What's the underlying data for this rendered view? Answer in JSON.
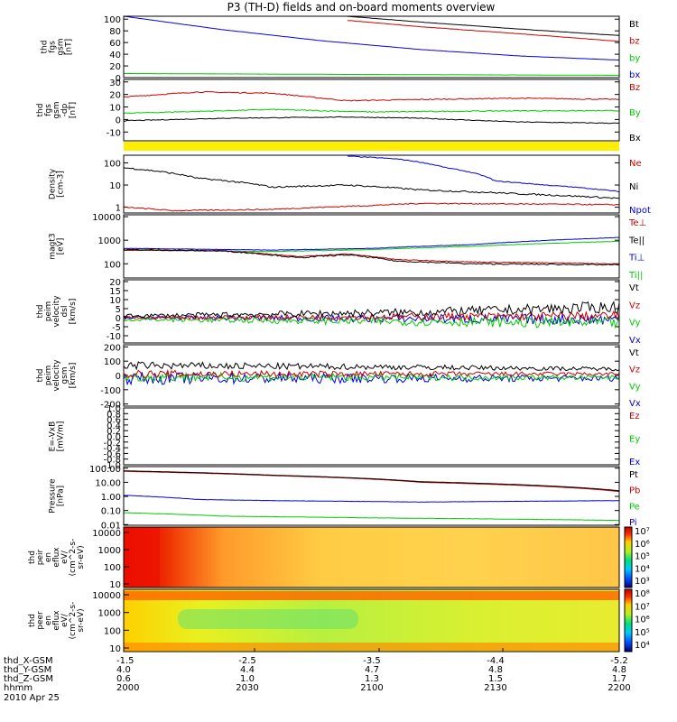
{
  "title": "P3 (TH-D) fields and on-board moments overview",
  "date_label": "2010 Apr 25",
  "colors": {
    "black": "#000000",
    "red": "#cc0000",
    "green": "#00cc00",
    "blue": "#0000dd",
    "yellow": "#ffee00",
    "axis": "#000000"
  },
  "chart_data": [
    {
      "id": "fgs_gsm",
      "type": "line",
      "ylabel": [
        "thd",
        "fgs",
        "gsm",
        "[nT]"
      ],
      "ylim": [
        0,
        105
      ],
      "ticks": [
        "0",
        "20",
        "40",
        "60",
        "80",
        "100"
      ],
      "tick_values": [
        0,
        20,
        40,
        60,
        80,
        100
      ],
      "legend": [
        {
          "label": "Bt",
          "color": "#000000"
        },
        {
          "label": "bz",
          "color": "#cc0000"
        },
        {
          "label": "by",
          "color": "#00cc00"
        },
        {
          "label": "bx",
          "color": "#0000dd"
        }
      ],
      "series": [
        {
          "color": "#000000",
          "noise": 0.2,
          "points": [
            [
              0.45,
              105
            ],
            [
              0.6,
              95
            ],
            [
              0.8,
              83
            ],
            [
              1.0,
              72
            ]
          ]
        },
        {
          "color": "#cc0000",
          "noise": 0.2,
          "points": [
            [
              0.45,
              98
            ],
            [
              0.6,
              87
            ],
            [
              0.8,
              75
            ],
            [
              1.0,
              62
            ]
          ]
        },
        {
          "color": "#00cc00",
          "noise": 0.1,
          "points": [
            [
              0,
              7
            ],
            [
              0.3,
              6
            ],
            [
              0.6,
              5
            ],
            [
              1.0,
              4
            ]
          ]
        },
        {
          "color": "#0000dd",
          "noise": 0.1,
          "points": [
            [
              0,
              105
            ],
            [
              0.2,
              82
            ],
            [
              0.4,
              63
            ],
            [
              0.6,
              48
            ],
            [
              0.8,
              37
            ],
            [
              1.0,
              30
            ]
          ]
        }
      ]
    },
    {
      "id": "fgs_gsm_dp",
      "type": "line",
      "ylabel": [
        "thd",
        "fgs",
        "gsm",
        "-dp",
        "[nT]"
      ],
      "ylim": [
        -17,
        32
      ],
      "ticks": [
        "-10",
        "0",
        "10",
        "20",
        "30"
      ],
      "tick_values": [
        -10,
        0,
        10,
        20,
        30
      ],
      "legend": [
        {
          "label": "Bz",
          "color": "#cc0000"
        },
        {
          "label": "By",
          "color": "#00cc00"
        },
        {
          "label": "Bx",
          "color": "#000000"
        }
      ],
      "series": [
        {
          "color": "#cc0000",
          "noise": 0.4,
          "points": [
            [
              0,
              18
            ],
            [
              0.15,
              22
            ],
            [
              0.3,
              21
            ],
            [
              0.45,
              15
            ],
            [
              0.6,
              16
            ],
            [
              0.8,
              17
            ],
            [
              1.0,
              16
            ]
          ]
        },
        {
          "color": "#00cc00",
          "noise": 0.4,
          "points": [
            [
              0,
              5
            ],
            [
              0.3,
              8
            ],
            [
              0.5,
              6
            ],
            [
              0.8,
              7
            ],
            [
              1.0,
              7
            ]
          ]
        },
        {
          "color": "#000000",
          "noise": 0.3,
          "points": [
            [
              0,
              -1
            ],
            [
              0.2,
              1
            ],
            [
              0.45,
              2
            ],
            [
              0.6,
              1
            ],
            [
              0.8,
              -2
            ],
            [
              1.0,
              -3
            ]
          ]
        }
      ]
    },
    {
      "id": "density",
      "type": "line",
      "log": true,
      "ylabel": [
        "Density",
        "[cm-3]"
      ],
      "ylim": [
        0.55,
        220
      ],
      "ticks": [
        "1",
        "10",
        "100"
      ],
      "tick_values": [
        1,
        10,
        100
      ],
      "legend": [
        {
          "label": "Ne",
          "color": "#cc0000"
        },
        {
          "label": "Ni",
          "color": "#000000"
        },
        {
          "label": "Npot",
          "color": "#0000dd"
        }
      ],
      "series": [
        {
          "color": "#0000dd",
          "noise": 0.02,
          "points": [
            [
              0.45,
              200
            ],
            [
              0.55,
              150
            ],
            [
              0.65,
              60
            ],
            [
              0.75,
              15
            ],
            [
              0.85,
              10
            ],
            [
              1.0,
              5
            ]
          ]
        },
        {
          "color": "#000000",
          "noise": 0.04,
          "points": [
            [
              0,
              60
            ],
            [
              0.15,
              20
            ],
            [
              0.3,
              8
            ],
            [
              0.45,
              10
            ],
            [
              0.6,
              6
            ],
            [
              0.8,
              4
            ],
            [
              1.0,
              2.5
            ]
          ]
        },
        {
          "color": "#cc0000",
          "noise": 0.03,
          "points": [
            [
              0,
              1.0
            ],
            [
              0.1,
              0.7
            ],
            [
              0.3,
              0.8
            ],
            [
              0.4,
              1.0
            ],
            [
              0.5,
              1.2
            ],
            [
              0.6,
              1.5
            ],
            [
              0.8,
              1.4
            ],
            [
              1.0,
              1.3
            ]
          ]
        }
      ]
    },
    {
      "id": "temperature",
      "type": "line",
      "log": true,
      "ylabel": [
        "magt3",
        "[eV]"
      ],
      "ylim": [
        25,
        12000
      ],
      "ticks": [
        "100",
        "1000",
        "10000"
      ],
      "tick_values": [
        100,
        1000,
        10000
      ],
      "legend": [
        {
          "label": "Te⊥",
          "color": "#cc0000"
        },
        {
          "label": "Te||",
          "color": "#000000"
        },
        {
          "label": "Ti⊥",
          "color": "#0000dd"
        },
        {
          "label": "Ti||",
          "color": "#00cc00"
        }
      ],
      "series": [
        {
          "color": "#0000dd",
          "noise": 0.01,
          "points": [
            [
              0,
              450
            ],
            [
              0.3,
              380
            ],
            [
              0.5,
              450
            ],
            [
              0.7,
              650
            ],
            [
              1.0,
              1300
            ]
          ]
        },
        {
          "color": "#00cc00",
          "noise": 0.01,
          "points": [
            [
              0,
              380
            ],
            [
              0.3,
              330
            ],
            [
              0.5,
              400
            ],
            [
              0.7,
              550
            ],
            [
              1.0,
              900
            ]
          ]
        },
        {
          "color": "#cc0000",
          "noise": 0.02,
          "points": [
            [
              0,
              380
            ],
            [
              0.2,
              360
            ],
            [
              0.35,
              200
            ],
            [
              0.45,
              260
            ],
            [
              0.55,
              150
            ],
            [
              0.7,
              120
            ],
            [
              1.0,
              100
            ]
          ]
        },
        {
          "color": "#000000",
          "noise": 0.03,
          "points": [
            [
              0,
              400
            ],
            [
              0.2,
              350
            ],
            [
              0.35,
              180
            ],
            [
              0.45,
              240
            ],
            [
              0.55,
              130
            ],
            [
              0.7,
              100
            ],
            [
              1.0,
              90
            ]
          ]
        }
      ]
    },
    {
      "id": "peim_velocity_dsl",
      "type": "line",
      "ylabel": [
        "thd",
        "peim",
        "velocity",
        "dsl",
        "[km/s]"
      ],
      "ylim": [
        -14,
        21
      ],
      "ticks": [
        "-10",
        "-5",
        "0",
        "5",
        "10",
        "15",
        "20"
      ],
      "tick_values": [
        -10,
        -5,
        0,
        5,
        10,
        15,
        20
      ],
      "legend": [
        {
          "label": "Vt",
          "color": "#000000"
        },
        {
          "label": "Vz",
          "color": "#cc0000"
        },
        {
          "label": "Vy",
          "color": "#00cc00"
        },
        {
          "label": "Vx",
          "color": "#0000dd"
        }
      ],
      "series": [
        {
          "color": "#0000dd",
          "noise": 1.5,
          "noisegrow": true,
          "points": [
            [
              0,
              0
            ],
            [
              1.0,
              -1
            ]
          ]
        },
        {
          "color": "#00cc00",
          "noise": 1.5,
          "noisegrow": true,
          "points": [
            [
              0,
              -1
            ],
            [
              1.0,
              -3
            ]
          ]
        },
        {
          "color": "#cc0000",
          "noise": 1.2,
          "noisegrow": true,
          "points": [
            [
              0,
              0
            ],
            [
              1.0,
              1
            ]
          ]
        },
        {
          "color": "#000000",
          "noise": 1.5,
          "noisegrow": true,
          "points": [
            [
              0,
              1
            ],
            [
              0.6,
              3
            ],
            [
              1.0,
              6
            ]
          ]
        }
      ]
    },
    {
      "id": "peim_velocity_gsm",
      "type": "line",
      "ylabel": [
        "thd",
        "peim",
        "velocity",
        "gsm",
        "[km/s]"
      ],
      "ylim": [
        -215,
        215
      ],
      "ticks": [
        "-200",
        "-100",
        "0",
        "100",
        "200"
      ],
      "tick_values": [
        -200,
        -100,
        0,
        100,
        200
      ],
      "legend": [
        {
          "label": "Vt",
          "color": "#000000"
        },
        {
          "label": "Vz",
          "color": "#cc0000"
        },
        {
          "label": "Vy",
          "color": "#00cc00"
        },
        {
          "label": "Vx",
          "color": "#0000dd"
        }
      ],
      "series": [
        {
          "color": "#0000dd",
          "noise": 40,
          "decay": true,
          "points": [
            [
              0,
              -20
            ],
            [
              1.0,
              -20
            ]
          ]
        },
        {
          "color": "#00cc00",
          "noise": 30,
          "decay": true,
          "points": [
            [
              0,
              -10
            ],
            [
              1.0,
              -15
            ]
          ]
        },
        {
          "color": "#cc0000",
          "noise": 25,
          "decay": true,
          "points": [
            [
              0,
              10
            ],
            [
              1.0,
              10
            ]
          ]
        },
        {
          "color": "#000000",
          "noise": 25,
          "decay": true,
          "points": [
            [
              0,
              70
            ],
            [
              0.5,
              60
            ],
            [
              1.0,
              45
            ]
          ]
        }
      ]
    },
    {
      "id": "e_minus_vxb",
      "type": "line",
      "ylabel": [
        "E=-VxB",
        "[mV/m]"
      ],
      "ylim": [
        -1.0,
        1.0
      ],
      "ticks": [
        "-1.0",
        "-0.8",
        "-0.6",
        "-0.4",
        "-0.2",
        "0.0",
        "0.2",
        "0.4",
        "0.6",
        "0.8",
        "1.0"
      ],
      "tick_values": [
        -1.0,
        -0.8,
        -0.6,
        -0.4,
        -0.2,
        0,
        0.2,
        0.4,
        0.6,
        0.8,
        1.0
      ],
      "legend": [
        {
          "label": "Ez",
          "color": "#cc0000"
        },
        {
          "label": "Ey",
          "color": "#00cc00"
        },
        {
          "label": "Ex",
          "color": "#0000dd"
        }
      ],
      "series": []
    },
    {
      "id": "pressure",
      "type": "line",
      "log": true,
      "ylabel": [
        "Pressure",
        "[nPa]"
      ],
      "ylim": [
        0.009,
        130
      ],
      "ticks": [
        "0.01",
        "0.10",
        "1.00",
        "10.00",
        "100.00"
      ],
      "tick_values": [
        0.01,
        0.1,
        1,
        10,
        100
      ],
      "legend": [
        {
          "label": "Pt",
          "color": "#000000"
        },
        {
          "label": "Pb",
          "color": "#cc0000"
        },
        {
          "label": "Pe",
          "color": "#00cc00"
        },
        {
          "label": "Pi",
          "color": "#0000dd"
        }
      ],
      "series": [
        {
          "color": "#00cc00",
          "noise": 0.01,
          "points": [
            [
              0,
              0.07
            ],
            [
              0.2,
              0.04
            ],
            [
              0.5,
              0.03
            ],
            [
              1.0,
              0.02
            ]
          ]
        },
        {
          "color": "#0000dd",
          "noise": 0.01,
          "points": [
            [
              0,
              1.2
            ],
            [
              0.15,
              0.6
            ],
            [
              0.3,
              0.5
            ],
            [
              0.6,
              0.4
            ],
            [
              1.0,
              0.5
            ]
          ]
        },
        {
          "color": "#cc0000",
          "noise": 0.003,
          "points": [
            [
              0,
              60
            ],
            [
              0.3,
              30
            ],
            [
              0.6,
              10
            ],
            [
              1.0,
              2.2
            ]
          ]
        },
        {
          "color": "#000000",
          "noise": 0.003,
          "points": [
            [
              0,
              65
            ],
            [
              0.3,
              32
            ],
            [
              0.6,
              11
            ],
            [
              1.0,
              2.5
            ]
          ]
        }
      ]
    },
    {
      "id": "peir_en_eflux",
      "type": "heatmap",
      "ylabel": [
        "thd",
        "peir",
        "en",
        "eflux",
        "eV/",
        "(cm^2-s-",
        "sr-eV)"
      ],
      "ticks": [
        "10",
        "100",
        "1000",
        "10000"
      ],
      "colorbar_ticks": [
        "10³",
        "10⁴",
        "10⁵",
        "10⁶",
        "10⁷"
      ],
      "palette": "ions"
    },
    {
      "id": "peer_en_eflux",
      "type": "heatmap",
      "ylabel": [
        "thd",
        "peer",
        "en",
        "eflux",
        "eV/",
        "(cm^2-s-",
        "sr-eV)"
      ],
      "ticks": [
        "10",
        "100",
        "1000",
        "10000"
      ],
      "colorbar_ticks": [
        "10⁴",
        "10⁵",
        "10⁶",
        "10⁷",
        "10⁸"
      ],
      "palette": "electrons"
    }
  ],
  "x_axis": {
    "rows": [
      {
        "label": "thd_X-GSM",
        "values": [
          "-1.5",
          "-2.5",
          "-3.5",
          "-4.4",
          "-5.2"
        ]
      },
      {
        "label": "thd_Y-GSM",
        "values": [
          "4.0",
          "4.4",
          "4.7",
          "4.8",
          "4.8"
        ]
      },
      {
        "label": "thd_Z-GSM",
        "values": [
          "0.6",
          "1.0",
          "1.3",
          "1.5",
          "1.7"
        ]
      },
      {
        "label": "hhmm",
        "values": [
          "2000",
          "2030",
          "2100",
          "2130",
          "2200"
        ]
      }
    ]
  }
}
